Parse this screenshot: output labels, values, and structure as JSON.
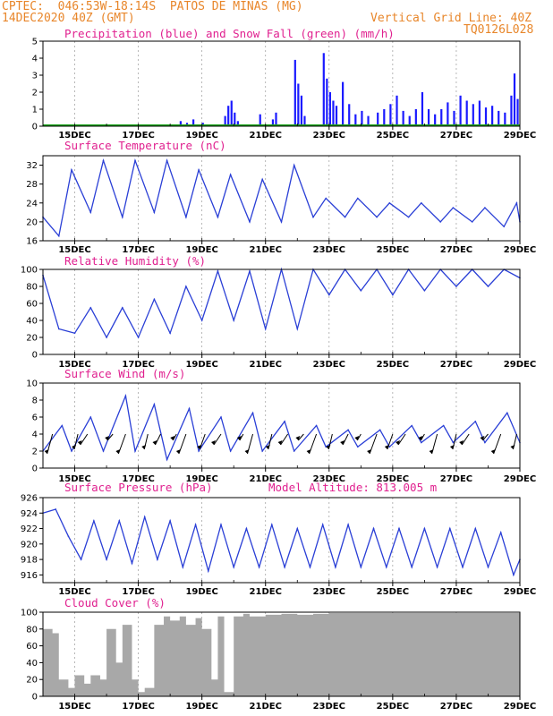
{
  "header": {
    "line1": "CPTEC:  046:53W-18:14S  PATOS DE MINAS (MG)",
    "line2": "14DEC2020 40Z (GMT)",
    "grid_note": "Vertical Grid Line: 40Z",
    "code": "TQ0126L028"
  },
  "colors": {
    "header": "#e8862a",
    "title": "#e0208f",
    "precip": "#1a1aff",
    "snow": "#1aa01a",
    "line": "#2a3fd6",
    "cloud": "#a8a8a8"
  },
  "chart_data": [
    {
      "id": "precip",
      "type": "bar",
      "title": "Precipitation (blue) and Snow Fall (green) (mm/h)",
      "ylim": [
        0,
        5
      ],
      "yticks": [
        0,
        1,
        2,
        3,
        4,
        5
      ],
      "xticks": [
        "15DEC",
        "17DEC",
        "19DEC",
        "21DEC",
        "23DEC",
        "25DEC",
        "27DEC",
        "29DEC"
      ],
      "xlim_days": [
        14.0,
        29.0
      ],
      "x": [
        18.1,
        18.3,
        18.5,
        18.7,
        19.0,
        19.7,
        19.8,
        19.9,
        20.0,
        20.1,
        20.8,
        21.2,
        21.3,
        21.9,
        22.0,
        22.1,
        22.2,
        22.8,
        22.9,
        23.0,
        23.1,
        23.2,
        23.4,
        23.6,
        23.8,
        24.0,
        24.2,
        24.5,
        24.7,
        24.9,
        25.1,
        25.3,
        25.5,
        25.7,
        25.9,
        26.1,
        26.3,
        26.5,
        26.7,
        26.9,
        27.1,
        27.3,
        27.5,
        27.7,
        27.9,
        28.1,
        28.3,
        28.5,
        28.7,
        28.8,
        28.9
      ],
      "values": [
        0.1,
        0.3,
        0.2,
        0.4,
        0.2,
        0.6,
        1.2,
        1.5,
        0.8,
        0.3,
        0.7,
        0.4,
        0.8,
        3.9,
        2.5,
        1.8,
        0.6,
        4.3,
        2.8,
        2.0,
        1.5,
        1.2,
        2.6,
        1.3,
        0.7,
        0.9,
        0.6,
        0.8,
        1.0,
        1.3,
        1.8,
        0.9,
        0.6,
        1.0,
        2.0,
        1.0,
        0.7,
        1.0,
        1.4,
        0.9,
        1.8,
        1.5,
        1.3,
        1.5,
        1.1,
        1.2,
        0.9,
        0.8,
        1.8,
        3.1,
        1.6
      ],
      "snow": 0
    },
    {
      "id": "temp",
      "type": "line",
      "title": "Surface Temperature (nC)",
      "ylim": [
        16,
        34
      ],
      "yticks": [
        16,
        20,
        24,
        28,
        32
      ],
      "xticks": [
        "15DEC",
        "17DEC",
        "19DEC",
        "21DEC",
        "23DEC",
        "25DEC",
        "27DEC",
        "29DEC"
      ],
      "xlim_days": [
        14.0,
        29.0
      ],
      "x": [
        14.0,
        14.5,
        14.9,
        15.5,
        15.9,
        16.5,
        16.9,
        17.5,
        17.9,
        18.5,
        18.9,
        19.5,
        19.9,
        20.5,
        20.9,
        21.5,
        21.9,
        22.5,
        22.9,
        23.5,
        23.9,
        24.5,
        24.9,
        25.5,
        25.9,
        26.5,
        26.9,
        27.5,
        27.9,
        28.5,
        28.9,
        29.0
      ],
      "values": [
        21,
        17,
        31,
        22,
        33,
        21,
        33,
        22,
        33,
        21,
        31,
        21,
        30,
        20,
        29,
        20,
        32,
        21,
        25,
        21,
        25,
        21,
        24,
        21,
        24,
        20,
        23,
        20,
        23,
        19,
        24,
        20
      ]
    },
    {
      "id": "rh",
      "type": "line",
      "title": "Relative Humidity (%)",
      "ylim": [
        0,
        100
      ],
      "yticks": [
        0,
        20,
        40,
        60,
        80,
        100
      ],
      "xticks": [
        "15DEC",
        "17DEC",
        "19DEC",
        "21DEC",
        "23DEC",
        "25DEC",
        "27DEC",
        "29DEC"
      ],
      "xlim_days": [
        14.0,
        29.0
      ],
      "x": [
        14.0,
        14.5,
        15.0,
        15.5,
        16.0,
        16.5,
        17.0,
        17.5,
        18.0,
        18.5,
        19.0,
        19.5,
        20.0,
        20.5,
        21.0,
        21.5,
        22.0,
        22.5,
        23.0,
        23.5,
        24.0,
        24.5,
        25.0,
        25.5,
        26.0,
        26.5,
        27.0,
        27.5,
        28.0,
        28.5,
        29.0
      ],
      "values": [
        93,
        30,
        25,
        55,
        20,
        55,
        20,
        65,
        25,
        80,
        40,
        98,
        40,
        98,
        30,
        100,
        30,
        100,
        70,
        100,
        75,
        100,
        70,
        100,
        75,
        100,
        80,
        100,
        80,
        100,
        90
      ]
    },
    {
      "id": "wind",
      "type": "line",
      "title": "Surface Wind (m/s)",
      "ylim": [
        0,
        10
      ],
      "yticks": [
        0,
        2,
        4,
        6,
        8,
        10
      ],
      "xticks": [
        "15DEC",
        "17DEC",
        "19DEC",
        "21DEC",
        "23DEC",
        "25DEC",
        "27DEC",
        "29DEC"
      ],
      "xlim_days": [
        14.0,
        29.0
      ],
      "x": [
        14.0,
        14.6,
        14.9,
        15.5,
        15.9,
        16.6,
        16.9,
        17.5,
        17.9,
        18.6,
        18.9,
        19.6,
        19.9,
        20.6,
        20.9,
        21.6,
        21.9,
        22.6,
        22.9,
        23.6,
        23.9,
        24.6,
        24.9,
        25.6,
        25.9,
        26.6,
        26.9,
        27.6,
        27.9,
        28.6,
        29.0
      ],
      "values": [
        2,
        5,
        2,
        6,
        2,
        8.5,
        2,
        7.5,
        1,
        7,
        2,
        6,
        2,
        6.5,
        2,
        5.5,
        2,
        5,
        2.5,
        4.5,
        2.5,
        4.5,
        2.5,
        5,
        3,
        5,
        3,
        5.5,
        3,
        6.5,
        3
      ],
      "vector_x": [
        14.3,
        15.1,
        15.4,
        16.2,
        16.6,
        17.3,
        17.7,
        18.2,
        18.5,
        19.1,
        19.6,
        20.3,
        20.6,
        21.2,
        21.7,
        22.2,
        22.6,
        23.1,
        23.6,
        24.0,
        24.5,
        25.0,
        25.4,
        26.0,
        26.4,
        27.0,
        27.4,
        28.0,
        28.4,
        28.9
      ]
    },
    {
      "id": "pres",
      "type": "line",
      "title": "Surface Pressure (hPa)",
      "subtitle": "Model Altitude: 813.005 m",
      "ylim": [
        915,
        926
      ],
      "yticks": [
        916,
        918,
        920,
        922,
        924,
        926
      ],
      "xticks": [
        "15DEC",
        "17DEC",
        "19DEC",
        "21DEC",
        "23DEC",
        "25DEC",
        "27DEC",
        "29DEC"
      ],
      "xlim_days": [
        14.0,
        29.0
      ],
      "x": [
        14.0,
        14.4,
        14.8,
        15.2,
        15.6,
        16.0,
        16.4,
        16.8,
        17.2,
        17.6,
        18.0,
        18.4,
        18.8,
        19.2,
        19.6,
        20.0,
        20.4,
        20.8,
        21.2,
        21.6,
        22.0,
        22.4,
        22.8,
        23.2,
        23.6,
        24.0,
        24.4,
        24.8,
        25.2,
        25.6,
        26.0,
        26.4,
        26.8,
        27.2,
        27.6,
        28.0,
        28.4,
        28.8,
        29.0
      ],
      "values": [
        924,
        924.5,
        921,
        918,
        923,
        918,
        923,
        917.5,
        923.5,
        918,
        923,
        917,
        922.5,
        916.5,
        922.5,
        917,
        922,
        917,
        922.5,
        917,
        922,
        917,
        922.5,
        917,
        922.5,
        917,
        922,
        917,
        922,
        917,
        922,
        917,
        922,
        917,
        922,
        917,
        921.5,
        916,
        918
      ]
    },
    {
      "id": "cloud",
      "type": "area",
      "title": "Cloud Cover (%)",
      "ylim": [
        0,
        100
      ],
      "yticks": [
        0,
        20,
        40,
        60,
        80,
        100
      ],
      "xticks": [
        "15DEC",
        "17DEC",
        "19DEC",
        "21DEC",
        "23DEC",
        "25DEC",
        "27DEC",
        "29DEC"
      ],
      "xlim_days": [
        14.0,
        29.0
      ],
      "x": [
        14.0,
        14.3,
        14.5,
        14.8,
        15.0,
        15.3,
        15.5,
        15.8,
        16.0,
        16.3,
        16.5,
        16.8,
        17.0,
        17.2,
        17.5,
        17.8,
        18.0,
        18.3,
        18.5,
        18.8,
        19.0,
        19.3,
        19.5,
        19.7,
        20.0,
        20.3,
        20.5,
        21.0,
        21.5,
        22.0,
        22.5,
        23.0,
        24.0,
        25.0,
        26.0,
        27.0,
        28.0,
        29.0
      ],
      "values": [
        80,
        75,
        20,
        10,
        25,
        15,
        25,
        20,
        80,
        40,
        85,
        20,
        5,
        10,
        85,
        95,
        90,
        95,
        85,
        93,
        80,
        20,
        95,
        5,
        95,
        98,
        95,
        97,
        98,
        97,
        98,
        99,
        99,
        99,
        99,
        99,
        99,
        99
      ]
    }
  ]
}
